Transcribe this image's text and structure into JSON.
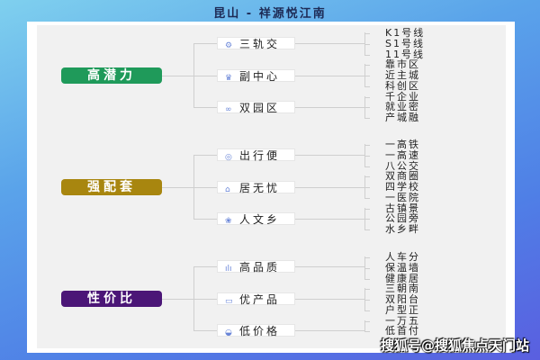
{
  "title": "昆山 - 祥源悦江南",
  "watermark": "搜狐号@搜狐焦点天门站",
  "groups": [
    {
      "label": "高潜力",
      "color": "#1f9a5a",
      "children": [
        {
          "label": "三轨交",
          "icon": "rail-icon",
          "leaves": [
            "K1号线",
            "S1号线",
            "11号线"
          ]
        },
        {
          "label": "副中心",
          "icon": "crown-icon",
          "leaves": [
            "靠市区",
            "近主城",
            "科创区"
          ]
        },
        {
          "label": "双园区",
          "icon": "link-icon",
          "leaves": [
            "千企业",
            "就业密",
            "产城融"
          ]
        }
      ]
    },
    {
      "label": "强配套",
      "color": "#a8860f",
      "children": [
        {
          "label": "出行便",
          "icon": "location-icon",
          "leaves": [
            "一高铁",
            "一高速",
            "八公交"
          ]
        },
        {
          "label": "居无忧",
          "icon": "home-icon",
          "leaves": [
            "双商圈",
            "四学校",
            "一医院"
          ]
        },
        {
          "label": "人文乡",
          "icon": "culture-icon",
          "leaves": [
            "古镇景",
            "公园旁",
            "水乡畔"
          ]
        }
      ]
    },
    {
      "label": "性价比",
      "color": "#4b1677",
      "children": [
        {
          "label": "高品质",
          "icon": "quality-icon",
          "leaves": [
            "人车分",
            "保温墙",
            "健康居"
          ]
        },
        {
          "label": "优产品",
          "icon": "product-icon",
          "leaves": [
            "三朝南",
            "双阳台",
            "户型正"
          ]
        },
        {
          "label": "低价格",
          "icon": "price-icon",
          "leaves": [
            "一万五",
            "低首付"
          ]
        }
      ]
    }
  ]
}
